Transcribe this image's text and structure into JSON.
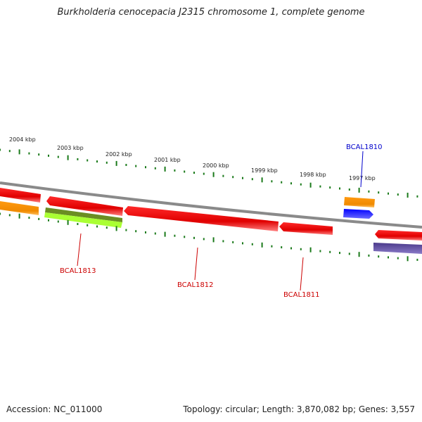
{
  "title": "Burkholderia cenocepacia J2315 chromosome 1, complete genome",
  "footer": {
    "accession": "Accession: NC_011000",
    "summary": "Topology: circular; Length: 3,870,082 bp; Genes: 3,557"
  },
  "scale": {
    "unit": "kbp",
    "labels": [
      "2004 kbp",
      "2003 kbp",
      "2002 kbp",
      "2001 kbp",
      "2000 kbp",
      "1999 kbp",
      "1998 kbp",
      "1997 kbp"
    ],
    "tick_color": "#1a7a1a"
  },
  "backbone_color": "#8a8a8a",
  "gene_labels": [
    {
      "id": "BCAL1810",
      "color": "#0000cc"
    },
    {
      "id": "BCAL1811",
      "color": "#cc0000"
    },
    {
      "id": "BCAL1812",
      "color": "#cc0000"
    },
    {
      "id": "BCAL1813",
      "color": "#cc0000"
    }
  ],
  "feature_colors": {
    "red": "#ee0000",
    "orange": "#ff9900",
    "olive": "#6b8e23",
    "lime": "#aaff33",
    "blue": "#0000ee",
    "navy": "#4b3f8c"
  }
}
